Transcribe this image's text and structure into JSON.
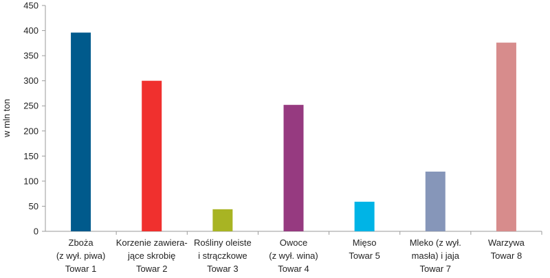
{
  "chart_data": {
    "type": "bar",
    "title": "",
    "xlabel": "",
    "ylabel": "w mln ton",
    "ylim": [
      0,
      450
    ],
    "yticks": [
      0,
      50,
      100,
      150,
      200,
      250,
      300,
      350,
      400,
      450
    ],
    "grid": false,
    "legend": "none",
    "categories": [
      [
        "Zboża",
        "(z wył. piwa)",
        "Towar 1"
      ],
      [
        "Korzenie zawiera-",
        "jące skrobię",
        "Towar 2"
      ],
      [
        "Rośliny oleiste",
        "i strączkowe",
        "Towar 3"
      ],
      [
        "Owoce",
        "(z wył. wina)",
        "Towar 4"
      ],
      [
        "Mięso",
        "Towar 5"
      ],
      [
        "Mleko (z wył.",
        "masła) i jaja",
        "Towar 7"
      ],
      [
        "Warzywa",
        "Towar 8"
      ]
    ],
    "values": [
      396,
      300,
      44,
      252,
      59,
      119,
      376
    ],
    "colors": [
      "#005a8c",
      "#f0302e",
      "#a8b423",
      "#963a80",
      "#00b4e6",
      "#8696b9",
      "#d78c8c"
    ]
  }
}
